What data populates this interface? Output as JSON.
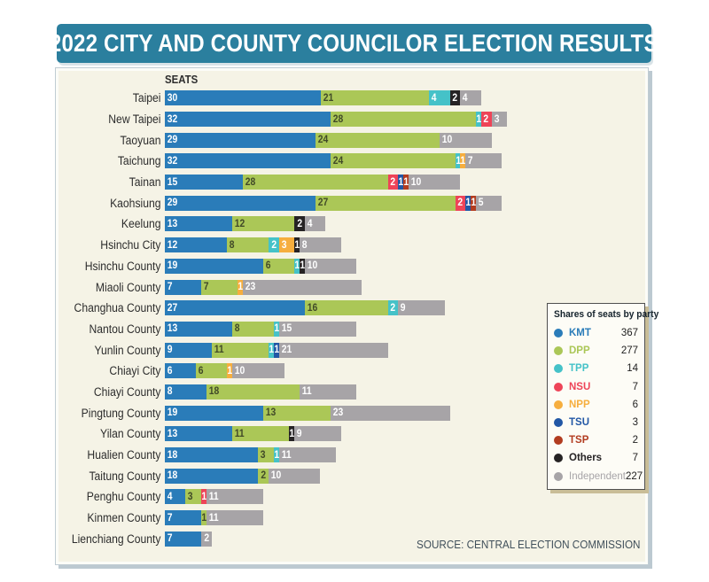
{
  "title": "2022 CITY AND COUNTY COUNCILOR ELECTION RESULTS",
  "source": "SOURCE: CENTRAL ELECTION COMMISSION",
  "legend": {
    "title": "Shares of seats by party"
  },
  "colors": {
    "banner_bg": "#2b7f9e",
    "panel_bg": "#f5f3e6",
    "legend_bg": "#fdfcf6",
    "legend_shadow": "#c9bd97",
    "text_dark": "#2d2d2d",
    "dpp_value_text": "#414a28",
    "source_text": "#41505b"
  },
  "chart_data": {
    "type": "bar",
    "stacked": true,
    "orientation": "horizontal",
    "title": "2022 CITY AND COUNTY COUNCILOR ELECTION RESULTS",
    "axis_label": "SEATS",
    "legend_position": "right",
    "value_labels": "inside",
    "max_total": 66,
    "categories": [
      "Taipei",
      "New Taipei",
      "Taoyuan",
      "Taichung",
      "Tainan",
      "Kaohsiung",
      "Keelung",
      "Hsinchu City",
      "Hsinchu County",
      "Miaoli County",
      "Changhua County",
      "Nantou County",
      "Yunlin County",
      "Chiayi City",
      "Chiayi County",
      "Pingtung County",
      "Yilan County",
      "Hualien County",
      "Taitung County",
      "Penghu County",
      "Kinmen County",
      "Lienchiang County"
    ],
    "series": [
      {
        "name": "KMT",
        "color": "#2a7cb9",
        "total": 367,
        "values": [
          30,
          32,
          29,
          32,
          15,
          29,
          13,
          12,
          19,
          7,
          27,
          13,
          9,
          6,
          8,
          19,
          13,
          18,
          18,
          4,
          7,
          7
        ]
      },
      {
        "name": "DPP",
        "color": "#abc757",
        "total": 277,
        "values": [
          21,
          28,
          24,
          24,
          28,
          27,
          12,
          8,
          6,
          7,
          16,
          8,
          11,
          6,
          18,
          13,
          11,
          3,
          2,
          3,
          1,
          0
        ]
      },
      {
        "name": "TPP",
        "color": "#45c2c8",
        "total": 14,
        "values": [
          4,
          1,
          0,
          1,
          0,
          0,
          0,
          2,
          1,
          0,
          2,
          1,
          1,
          0,
          0,
          0,
          0,
          1,
          0,
          0,
          0,
          0
        ]
      },
      {
        "name": "NSU",
        "color": "#ee4458",
        "total": 7,
        "values": [
          0,
          2,
          0,
          0,
          2,
          2,
          0,
          0,
          0,
          0,
          0,
          0,
          0,
          0,
          0,
          0,
          0,
          0,
          0,
          1,
          0,
          0
        ]
      },
      {
        "name": "NPP",
        "color": "#f6ae3e",
        "total": 6,
        "values": [
          0,
          0,
          0,
          1,
          0,
          0,
          0,
          3,
          0,
          1,
          0,
          0,
          0,
          1,
          0,
          0,
          0,
          0,
          0,
          0,
          0,
          0
        ]
      },
      {
        "name": "TSU",
        "color": "#2257a5",
        "total": 3,
        "values": [
          0,
          0,
          0,
          0,
          1,
          1,
          0,
          0,
          0,
          0,
          0,
          0,
          1,
          0,
          0,
          0,
          0,
          0,
          0,
          0,
          0,
          0
        ]
      },
      {
        "name": "TSP",
        "color": "#b23c20",
        "total": 2,
        "values": [
          0,
          0,
          0,
          0,
          1,
          1,
          0,
          0,
          0,
          0,
          0,
          0,
          0,
          0,
          0,
          0,
          0,
          0,
          0,
          0,
          0,
          0
        ]
      },
      {
        "name": "Others",
        "color": "#262324",
        "total": 7,
        "values": [
          2,
          0,
          0,
          0,
          0,
          0,
          2,
          1,
          1,
          0,
          0,
          0,
          0,
          0,
          0,
          0,
          1,
          0,
          0,
          0,
          0,
          0
        ]
      },
      {
        "name": "Independent",
        "color": "#a7a4a7",
        "total": 227,
        "values": [
          4,
          3,
          10,
          7,
          10,
          5,
          4,
          8,
          10,
          23,
          9,
          15,
          21,
          10,
          11,
          23,
          9,
          11,
          10,
          11,
          11,
          2
        ]
      }
    ]
  }
}
